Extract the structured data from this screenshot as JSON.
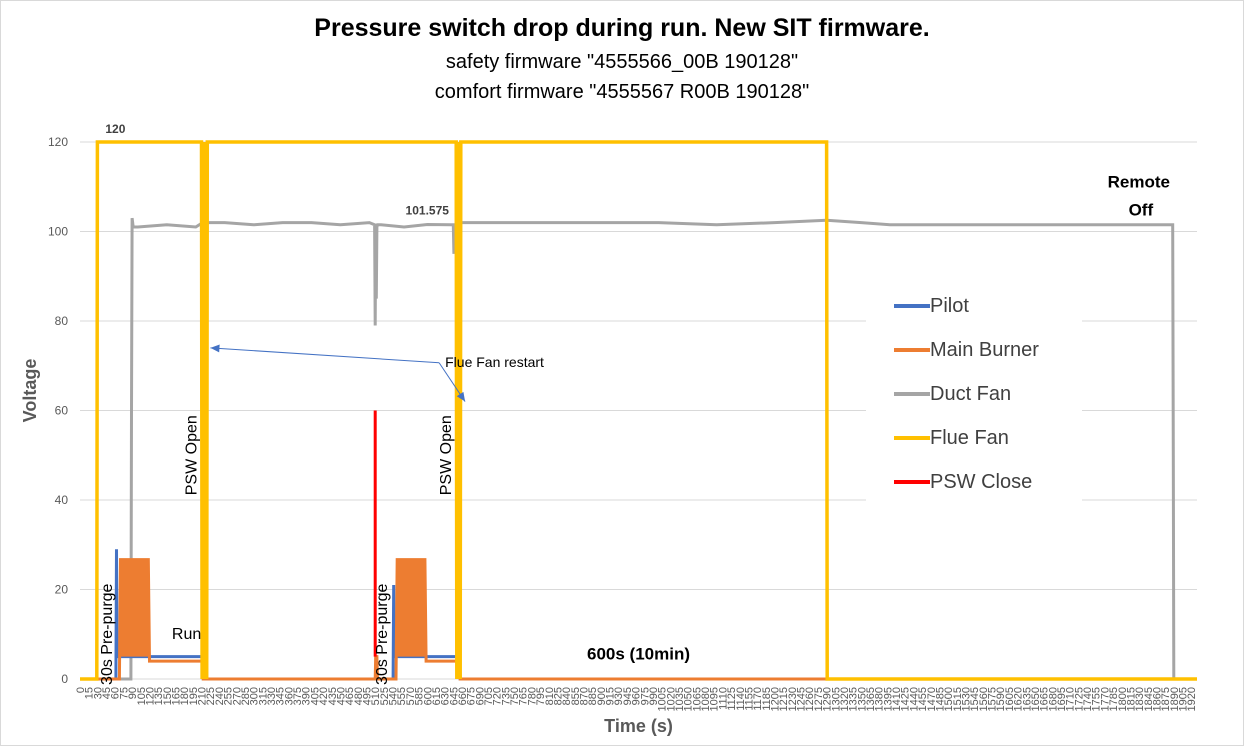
{
  "chart_data": {
    "type": "line",
    "title": "Pressure switch drop during run. New SIT firmware.",
    "subtitles": [
      "safety firmware \"4555566_00B 190128\"",
      "comfort firmware \"4555567 R00B 190128\""
    ],
    "xlabel": "Time (s)",
    "ylabel": "Voltage",
    "xlim": [
      0,
      1930
    ],
    "ylim": [
      0,
      120
    ],
    "yticks": [
      0,
      20,
      40,
      60,
      80,
      100,
      120
    ],
    "xtick_step": 15,
    "grid": "horizontal",
    "legend_position": "right",
    "series": [
      {
        "name": "Pilot",
        "color": "#4472C4",
        "x": [
          0,
          62,
          63,
          64,
          66,
          67,
          100,
          212,
          213,
          214,
          540,
          541,
          542,
          543,
          555,
          558,
          563,
          656,
          657,
          658,
          1930
        ],
        "y": [
          0,
          0,
          29,
          5,
          5,
          5,
          5,
          5,
          0,
          0,
          0,
          0,
          21,
          5,
          5,
          5,
          5,
          5,
          0,
          0,
          0
        ]
      },
      {
        "name": "Main Burner",
        "color": "#ED7D31",
        "x": [
          0,
          68,
          70,
          72,
          74,
          76,
          78,
          80,
          82,
          84,
          86,
          88,
          90,
          92,
          94,
          96,
          98,
          100,
          102,
          104,
          106,
          108,
          110,
          112,
          114,
          116,
          118,
          120,
          125,
          212,
          213,
          510,
          511,
          512,
          513,
          514,
          546,
          548,
          550,
          552,
          554,
          556,
          558,
          560,
          562,
          564,
          566,
          568,
          570,
          572,
          574,
          576,
          578,
          580,
          582,
          584,
          586,
          588,
          590,
          592,
          594,
          596,
          598,
          656,
          657,
          1930
        ],
        "y": [
          0,
          0,
          27,
          5,
          27,
          5,
          27,
          5,
          27,
          5,
          27,
          5,
          27,
          5,
          27,
          5,
          27,
          5,
          27,
          5,
          27,
          5,
          27,
          5,
          27,
          5,
          27,
          4,
          4,
          4,
          0,
          0,
          5,
          5,
          5,
          0,
          0,
          27,
          5,
          27,
          5,
          27,
          5,
          27,
          5,
          27,
          5,
          27,
          5,
          27,
          5,
          27,
          5,
          27,
          5,
          27,
          5,
          27,
          5,
          27,
          5,
          27,
          4,
          4,
          0,
          0
        ]
      },
      {
        "name": "Duct Fan",
        "color": "#A5A5A5",
        "x": [
          0,
          88,
          89,
          90,
          92,
          95,
          100,
          150,
          200,
          212,
          250,
          300,
          350,
          400,
          450,
          500,
          509,
          510,
          511,
          512,
          513,
          514,
          515,
          520,
          560,
          600,
          640,
          645,
          646,
          647,
          648,
          660,
          700,
          800,
          900,
          1000,
          1100,
          1200,
          1290,
          1350,
          1400,
          1500,
          1600,
          1700,
          1800,
          1880,
          1888,
          1889,
          1890,
          1930
        ],
        "y": [
          0,
          0,
          60,
          103,
          101,
          101,
          101,
          101.5,
          101,
          102,
          102,
          101.5,
          102,
          102,
          101.5,
          102,
          101.5,
          79,
          101,
          85,
          101,
          101.5,
          101.5,
          101.5,
          101,
          101.575,
          101.5,
          101.5,
          95,
          101.5,
          101.5,
          102,
          102,
          102,
          102,
          102,
          101.5,
          102,
          102.5,
          102,
          101.5,
          101.5,
          101.5,
          101.5,
          101.5,
          101.5,
          101.5,
          50,
          0,
          0
        ]
      },
      {
        "name": "Flue Fan",
        "color": "#FFC000",
        "x": [
          0,
          29,
          30,
          210,
          211,
          212,
          213,
          214,
          215,
          216,
          217,
          218,
          219,
          220,
          650,
          651,
          652,
          653,
          654,
          655,
          656,
          657,
          658,
          1290,
          1291,
          1930
        ],
        "y": [
          0,
          0,
          120,
          120,
          0,
          120,
          0,
          120,
          0,
          120,
          0,
          120,
          0,
          120,
          120,
          0,
          120,
          0,
          120,
          0,
          120,
          0,
          120,
          120,
          0,
          0
        ]
      },
      {
        "name": "PSW Close",
        "color": "#FF0000",
        "x": [
          510,
          510
        ],
        "y": [
          5,
          60
        ]
      }
    ],
    "data_labels": [
      {
        "series": "Flue Fan",
        "x": 30,
        "y": 120,
        "text": "120"
      },
      {
        "series": "Duct Fan",
        "x": 600,
        "y": 101.575,
        "text": "101.575"
      }
    ],
    "annotations": [
      {
        "text": "30s Pre-purge",
        "x": 45,
        "y": 10,
        "orientation": "vertical"
      },
      {
        "text": "Run",
        "x": 160,
        "y": 8
      },
      {
        "text": "PSW Open",
        "x": 210,
        "y": 50,
        "orientation": "vertical"
      },
      {
        "text": "Flue Fan restart",
        "x": 700,
        "y": 70,
        "arrows_to": [
          [
            215,
            74
          ],
          [
            655,
            62
          ]
        ]
      },
      {
        "text": "30s Pre-purge",
        "x": 520,
        "y": 10,
        "orientation": "vertical"
      },
      {
        "text": "PSW Open",
        "x": 650,
        "y": 50,
        "orientation": "vertical"
      },
      {
        "text": "600s (10min)",
        "x": 965,
        "y": 3
      },
      {
        "text": "Remote Off",
        "x": 1890,
        "y": 108
      }
    ]
  }
}
